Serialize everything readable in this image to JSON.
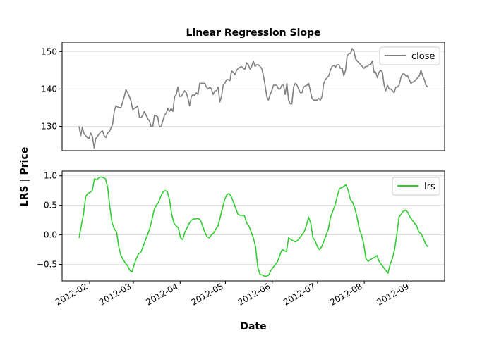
{
  "chart_data": {
    "type": "line",
    "title": "Linear Regression Slope",
    "xlabel": "Date",
    "ylabel": "LRS | Price",
    "x_start": "2012-01-25",
    "x_end": "2012-09-12",
    "x_ticks": [
      "2012-02",
      "2012-03",
      "2012-04",
      "2012-05",
      "2012-06",
      "2012-07",
      "2012-08",
      "2012-09"
    ],
    "grid_y": true,
    "panels": [
      {
        "name": "price",
        "ylim": [
          123.5,
          152.5
        ],
        "yticks": [
          130,
          140,
          150
        ],
        "legend_position": "top-right",
        "series": [
          {
            "name": "close",
            "color": "#808080",
            "values": [
              130.0,
              127.5,
              129.8,
              128.0,
              127.5,
              127.0,
              126.8,
              128.2,
              127.3,
              124.2,
              126.8,
              127.3,
              128.0,
              128.5,
              128.8,
              127.5,
              127.0,
              128.2,
              128.5,
              129.5,
              130.5,
              134.0,
              135.5,
              135.2,
              135.0,
              135.0,
              136.5,
              138.0,
              139.8,
              139.0,
              138.0,
              136.8,
              134.5,
              134.8,
              135.0,
              135.5,
              132.5,
              132.3,
              133.0,
              134.0,
              133.0,
              132.0,
              131.5,
              130.0,
              130.0,
              133.0,
              132.8,
              132.5,
              129.8,
              130.0,
              131.5,
              133.0,
              133.5,
              134.8,
              134.0,
              134.8,
              134.0,
              138.0,
              138.5,
              140.5,
              138.0,
              138.0,
              138.8,
              139.5,
              139.0,
              137.5,
              135.5,
              138.0,
              138.5,
              138.3,
              139.0,
              138.5,
              141.5,
              141.5,
              141.5,
              141.5,
              140.5,
              140.0,
              140.5,
              140.0,
              138.5,
              139.5,
              139.5,
              140.5,
              136.5,
              138.0,
              141.0,
              141.5,
              142.5,
              142.5,
              142.2,
              144.8,
              144.5,
              143.8,
              145.0,
              145.5,
              145.8,
              146.0,
              145.5,
              145.3,
              147.0,
              146.5,
              145.3,
              146.0,
              147.5,
              146.0,
              146.5,
              146.5,
              146.0,
              145.5,
              143.5,
              141.0,
              138.0,
              137.0,
              138.5,
              139.5,
              141.0,
              141.0,
              141.0,
              140.0,
              140.0,
              141.0,
              141.0,
              138.5,
              141.5,
              137.0,
              136.0,
              136.0,
              140.5,
              141.5,
              141.0,
              140.0,
              139.0,
              139.0,
              140.5,
              140.8,
              141.0,
              141.5,
              139.5,
              137.5,
              137.0,
              137.0,
              137.0,
              137.5,
              137.0,
              138.0,
              141.5,
              142.5,
              143.0,
              143.5,
              145.0,
              146.0,
              146.3,
              145.8,
              146.5,
              146.5,
              145.5,
              145.5,
              143.5,
              145.0,
              149.0,
              149.5,
              149.5,
              150.8,
              150.2,
              148.0,
              147.5,
              147.0,
              146.5,
              146.0,
              145.5,
              146.0,
              146.0,
              146.5,
              146.5,
              147.5,
              144.5,
              144.5,
              143.0,
              144.5,
              145.0,
              144.5,
              141.0,
              139.5,
              141.0,
              140.0,
              140.0,
              139.5,
              139.0,
              140.5,
              140.5,
              141.0,
              143.0,
              144.0,
              144.0,
              143.5,
              143.5,
              142.5,
              141.5,
              141.8,
              142.0,
              142.5,
              143.0,
              143.5,
              145.0,
              143.5,
              142.5,
              141.0,
              140.5
            ],
            "x_start": "2012-01-25",
            "x_end": "2012-09-12"
          }
        ]
      },
      {
        "name": "lrs",
        "ylim": [
          -0.78,
          1.08
        ],
        "yticks": [
          -0.5,
          0.0,
          0.5,
          1.0
        ],
        "ytick_labels": [
          "−0.5",
          "0.0",
          "0.5",
          "1.0"
        ],
        "legend_position": "top-right",
        "series": [
          {
            "name": "lrs",
            "color": "#32cd32",
            "values": [
              -0.05,
              0.15,
              0.35,
              0.65,
              0.7,
              0.72,
              0.75,
              0.95,
              0.93,
              0.97,
              0.98,
              0.97,
              0.95,
              0.8,
              0.45,
              0.2,
              0.1,
              0.05,
              -0.2,
              -0.35,
              -0.42,
              -0.48,
              -0.52,
              -0.6,
              -0.63,
              -0.5,
              -0.4,
              -0.32,
              -0.3,
              -0.2,
              -0.1,
              0.0,
              0.1,
              0.25,
              0.42,
              0.5,
              0.55,
              0.65,
              0.72,
              0.75,
              0.73,
              0.6,
              0.35,
              0.2,
              0.15,
              0.12,
              -0.05,
              -0.08,
              0.05,
              0.12,
              0.2,
              0.25,
              0.27,
              0.27,
              0.28,
              0.25,
              0.15,
              0.05,
              -0.03,
              -0.05,
              0.0,
              0.03,
              0.1,
              0.15,
              0.3,
              0.45,
              0.6,
              0.68,
              0.7,
              0.65,
              0.55,
              0.45,
              0.35,
              0.33,
              0.33,
              0.32,
              0.2,
              0.15,
              0.05,
              -0.05,
              -0.2,
              -0.55,
              -0.67,
              -0.68,
              -0.7,
              -0.7,
              -0.68,
              -0.6,
              -0.55,
              -0.5,
              -0.45,
              -0.35,
              -0.25,
              -0.27,
              -0.28,
              -0.05,
              -0.08,
              -0.1,
              -0.12,
              -0.1,
              -0.05,
              0.0,
              0.05,
              0.15,
              0.3,
              0.2,
              -0.05,
              -0.1,
              -0.2,
              -0.25,
              -0.2,
              -0.1,
              0.0,
              0.1,
              0.3,
              0.4,
              0.5,
              0.65,
              0.78,
              0.8,
              0.82,
              0.85,
              0.75,
              0.6,
              0.55,
              0.45,
              0.3,
              0.1,
              0.0,
              -0.15,
              -0.4,
              -0.45,
              -0.42,
              -0.4,
              -0.38,
              -0.35,
              -0.45,
              -0.5,
              -0.55,
              -0.6,
              -0.65,
              -0.5,
              -0.4,
              -0.25,
              0.0,
              0.3,
              0.35,
              0.4,
              0.42,
              0.38,
              0.3,
              0.25,
              0.2,
              0.15,
              0.05,
              0.02,
              -0.05,
              -0.15,
              -0.2
            ],
            "x_start": "2012-01-25",
            "x_end": "2012-09-12"
          }
        ]
      }
    ]
  }
}
